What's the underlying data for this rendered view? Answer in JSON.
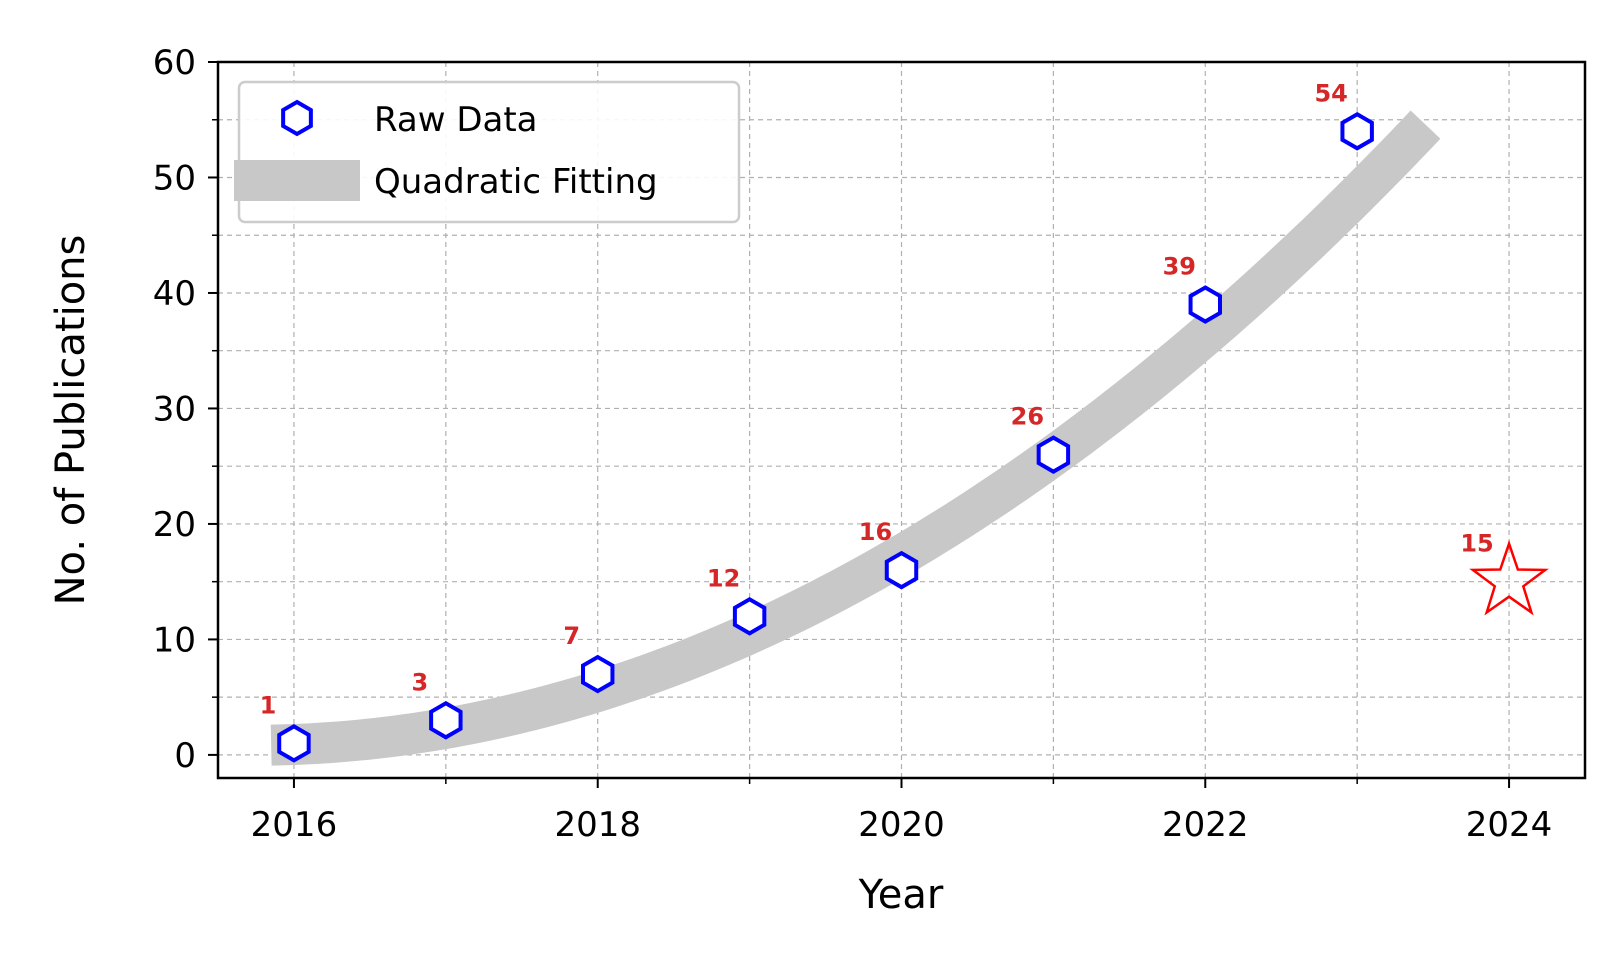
{
  "chart_data": {
    "type": "scatter",
    "xlabel": "Year",
    "ylabel": "No. of Publications",
    "xlim": [
      2015.5,
      2024.5
    ],
    "ylim": [
      -2,
      60
    ],
    "x_ticks": [
      2016,
      2018,
      2020,
      2022,
      2024
    ],
    "x_minor_ticks": [
      2017,
      2019,
      2021,
      2023
    ],
    "y_ticks": [
      0,
      10,
      20,
      30,
      40,
      50,
      60
    ],
    "y_minor_ticks": [
      5,
      15,
      25,
      35,
      45,
      55
    ],
    "grid": true,
    "legend_position": "top-left",
    "series": [
      {
        "name": "Raw Data",
        "marker": "hexagon-outline",
        "color": "#0000ff",
        "x": [
          2016,
          2017,
          2018,
          2019,
          2020,
          2021,
          2022,
          2023
        ],
        "y": [
          1,
          3,
          7,
          12,
          16,
          26,
          39,
          54
        ],
        "labels": [
          "1",
          "3",
          "7",
          "12",
          "16",
          "26",
          "39",
          "54"
        ]
      },
      {
        "name": "Quadratic Fitting",
        "style": "thick-band",
        "color": "#c8c8c8",
        "x_range": [
          2015.85,
          2023.45
        ],
        "fit": {
          "x0": 2016,
          "a": 0.9,
          "b": 0.5,
          "c": 0.9
        }
      },
      {
        "marker": "star-outline",
        "color": "#ff0000",
        "x": [
          2024
        ],
        "y": [
          15
        ],
        "labels": [
          "15"
        ]
      }
    ],
    "label_color": "#d62728"
  }
}
